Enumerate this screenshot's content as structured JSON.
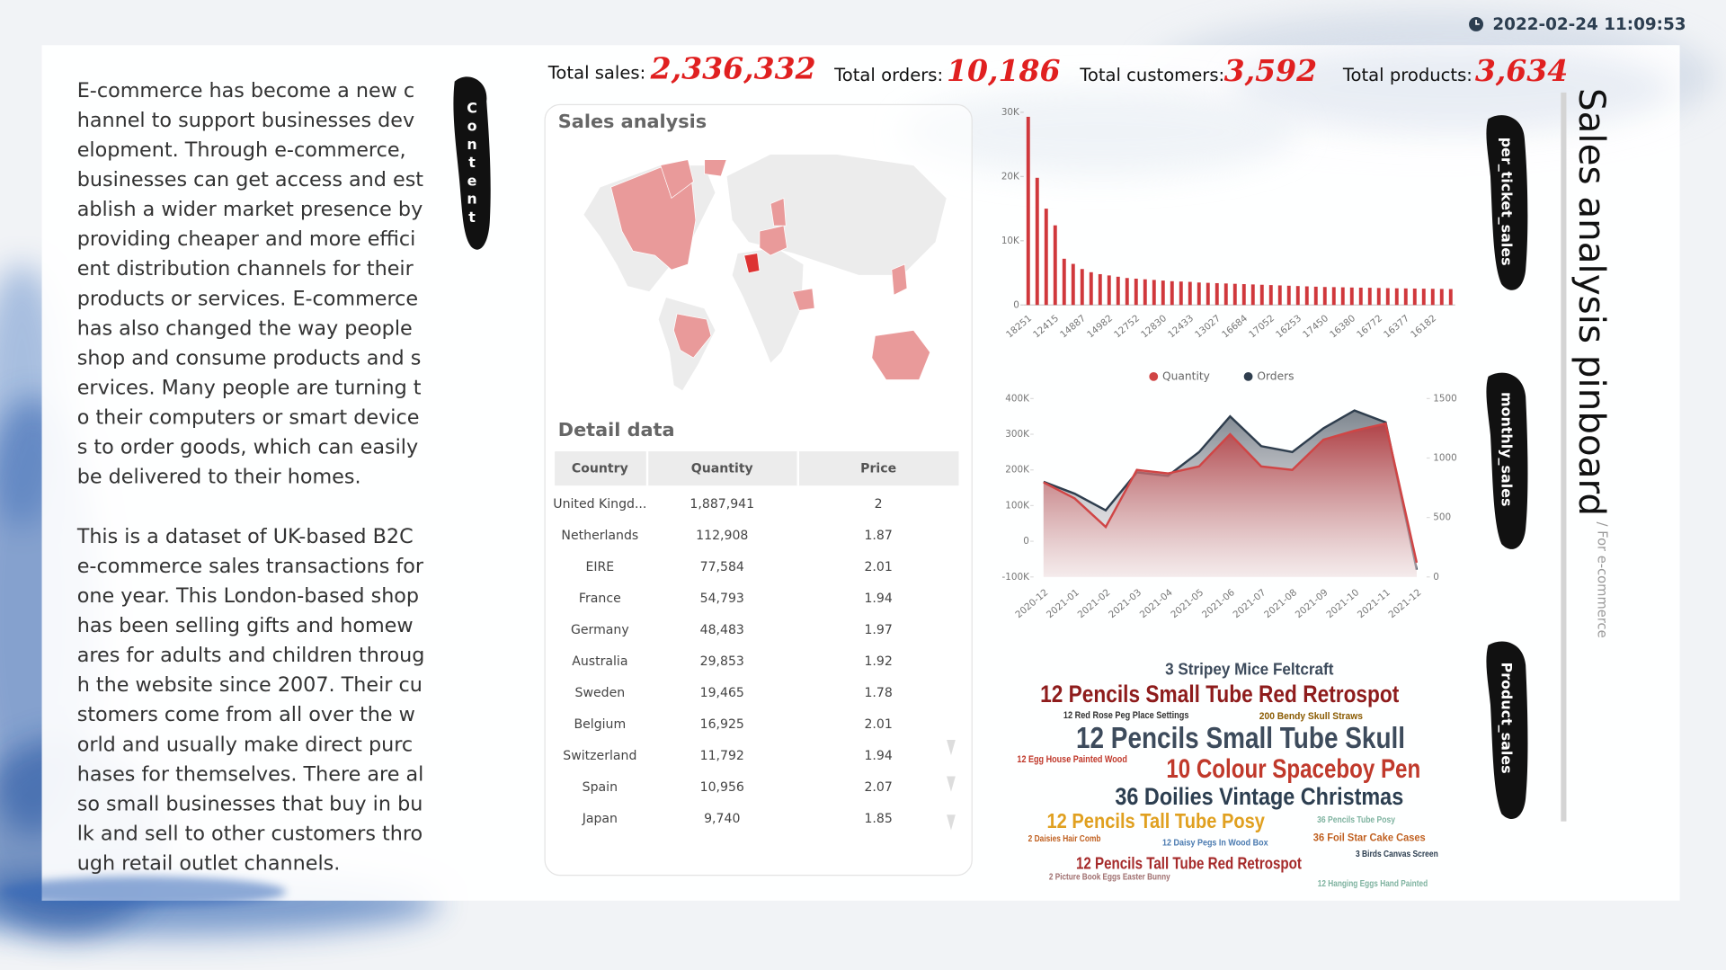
{
  "header": {
    "timestamp": "2022-02-24 11:09:53"
  },
  "intro": {
    "paragraphs": [
      "E-commerce has become a new channel to support businesses development. Through e-commerce, businesses can get access and establish a wider market presence by providing cheaper and more efficient distribution channels for their products or services. E-commerce has also changed the way people shop and consume products and services. Many people are turning to their computers or smart devices to order goods, which can easily be delivered to their homes.",
      "This is a dataset of UK-based B2C e-commerce sales transactions for one year. This London-based shop has been selling gifts and homewares for adults and children through the website since 2007. Their customers come from all over the world and usually make direct purchases for themselves. There are also small businesses that buy in bulk and sell to other customers through retail outlet channels."
    ]
  },
  "side_labels": {
    "content": "Content",
    "per_ticket": "per_ticket_sales",
    "monthly": "monthly_sales",
    "product": "Product_sales"
  },
  "title": "Sales analysis pinboard",
  "subtitle": "/ For e-commerce",
  "kpis": [
    {
      "label": "Total sales:",
      "value": "2,336,332"
    },
    {
      "label": "Total orders:",
      "value": "10,186"
    },
    {
      "label": "Total customers:",
      "value": "3,592"
    },
    {
      "label": "Total products:",
      "value": "3,634"
    }
  ],
  "panel": {
    "title": "Sales analysis",
    "detail_title": "Detail data"
  },
  "table": {
    "headers": [
      "Country",
      "Quantity",
      "Price"
    ],
    "rows": [
      [
        "United Kingd...",
        "1,887,941",
        "2"
      ],
      [
        "Netherlands",
        "112,908",
        "1.87"
      ],
      [
        "EIRE",
        "77,584",
        "2.01"
      ],
      [
        "France",
        "54,793",
        "1.94"
      ],
      [
        "Germany",
        "48,483",
        "1.97"
      ],
      [
        "Australia",
        "29,853",
        "1.92"
      ],
      [
        "Sweden",
        "19,465",
        "1.78"
      ],
      [
        "Belgium",
        "16,925",
        "2.01"
      ],
      [
        "Switzerland",
        "11,792",
        "1.94"
      ],
      [
        "Spain",
        "10,956",
        "2.07"
      ],
      [
        "Japan",
        "9,740",
        "1.85"
      ]
    ]
  },
  "word_cloud": [
    {
      "text": "3 Stripey Mice Feltcraft",
      "color": "#3d4b5c"
    },
    {
      "text": "12 Pencils Small Tube Red Retrospot",
      "color": "#8e1c1c"
    },
    {
      "text": "12 Red Rose Peg Place Settings",
      "color": "#333333"
    },
    {
      "text": "200 Bendy Skull Straws",
      "color": "#8a5a00"
    },
    {
      "text": "12 Pencils Small Tube Skull",
      "color": "#3d4b5c"
    },
    {
      "text": "12 Egg House Painted Wood",
      "color": "#c0392b"
    },
    {
      "text": "10 Colour Spaceboy Pen",
      "color": "#c0392b"
    },
    {
      "text": "36 Doilies Vintage Christmas",
      "color": "#2c3e50"
    },
    {
      "text": "12 Pencils Tall Tube Posy",
      "color": "#e0a020"
    },
    {
      "text": "36 Pencils Tube Posy",
      "color": "#7fb3a0"
    },
    {
      "text": "2 Daisies Hair Comb",
      "color": "#c06020"
    },
    {
      "text": "12 Daisy Pegs In Wood Box",
      "color": "#4a7ab0"
    },
    {
      "text": "36 Foil Star Cake Cases",
      "color": "#c06020"
    },
    {
      "text": "3 Birds Canvas Screen",
      "color": "#2c3e50"
    },
    {
      "text": "12 Pencils Tall Tube Red Retrospot",
      "color": "#a52a2a"
    },
    {
      "text": "2 Picture Book Eggs Easter Bunny",
      "color": "#a07070"
    },
    {
      "text": "12 Hanging Eggs Hand Painted",
      "color": "#7fb3a0"
    }
  ],
  "chart_data": [
    {
      "type": "bar",
      "color": "#d0383c",
      "categories": [
        "18251",
        null,
        null,
        "12415",
        null,
        null,
        "14887",
        null,
        null,
        "14982",
        null,
        null,
        "12752",
        null,
        null,
        "12830",
        null,
        null,
        "12433",
        null,
        null,
        "13027",
        null,
        null,
        "16684",
        null,
        null,
        "17052",
        null,
        null,
        "16253",
        null,
        null,
        "17450",
        null,
        null,
        "16380",
        null,
        null,
        "16772",
        null,
        null,
        "16377",
        null,
        null,
        "16182",
        null,
        null
      ],
      "values": [
        29300,
        19800,
        15000,
        12400,
        7200,
        6400,
        5600,
        5100,
        4800,
        4600,
        4400,
        4200,
        4100,
        4000,
        3900,
        3800,
        3700,
        3650,
        3600,
        3500,
        3450,
        3400,
        3350,
        3300,
        3250,
        3200,
        3150,
        3100,
        3050,
        3000,
        2950,
        2900,
        2850,
        2800,
        2780,
        2750,
        2720,
        2700,
        2680,
        2650,
        2620,
        2600,
        2580,
        2560,
        2540,
        2520,
        2500,
        2480
      ],
      "ylim": [
        0,
        30000
      ],
      "yticks": [
        {
          "value": 0,
          "label": "0"
        },
        {
          "value": 10000,
          "label": "10K"
        },
        {
          "value": 20000,
          "label": "20K"
        },
        {
          "value": 30000,
          "label": "30K"
        }
      ]
    },
    {
      "type": "line",
      "area": true,
      "legend": "top",
      "categories": [
        "2020-12",
        "2021-01",
        "2021-02",
        "2021-03",
        "2021-04",
        "2021-05",
        "2021-06",
        "2021-07",
        "2021-08",
        "2021-09",
        "2021-10",
        "2021-11",
        "2021-12"
      ],
      "series": [
        {
          "name": "Quantity",
          "color": "#d04545",
          "values": [
            165000,
            120000,
            40000,
            200000,
            190000,
            210000,
            300000,
            210000,
            200000,
            285000,
            310000,
            330000,
            -60000
          ]
        },
        {
          "name": "Orders",
          "color": "#2f3e4e",
          "axis": "y2",
          "values": [
            800,
            700,
            560,
            880,
            850,
            1050,
            1350,
            1100,
            1050,
            1250,
            1400,
            1300,
            60
          ]
        }
      ],
      "ylim": [
        -100000,
        400000
      ],
      "yticks": [
        {
          "value": -100000,
          "label": "-100K"
        },
        {
          "value": 0,
          "label": "0"
        },
        {
          "value": 100000,
          "label": "100K"
        },
        {
          "value": 200000,
          "label": "200K"
        },
        {
          "value": 300000,
          "label": "300K"
        },
        {
          "value": 400000,
          "label": "400K"
        }
      ],
      "y2lim": [
        0,
        1500
      ],
      "y2ticks": [
        0,
        500,
        1000,
        1500
      ]
    }
  ]
}
